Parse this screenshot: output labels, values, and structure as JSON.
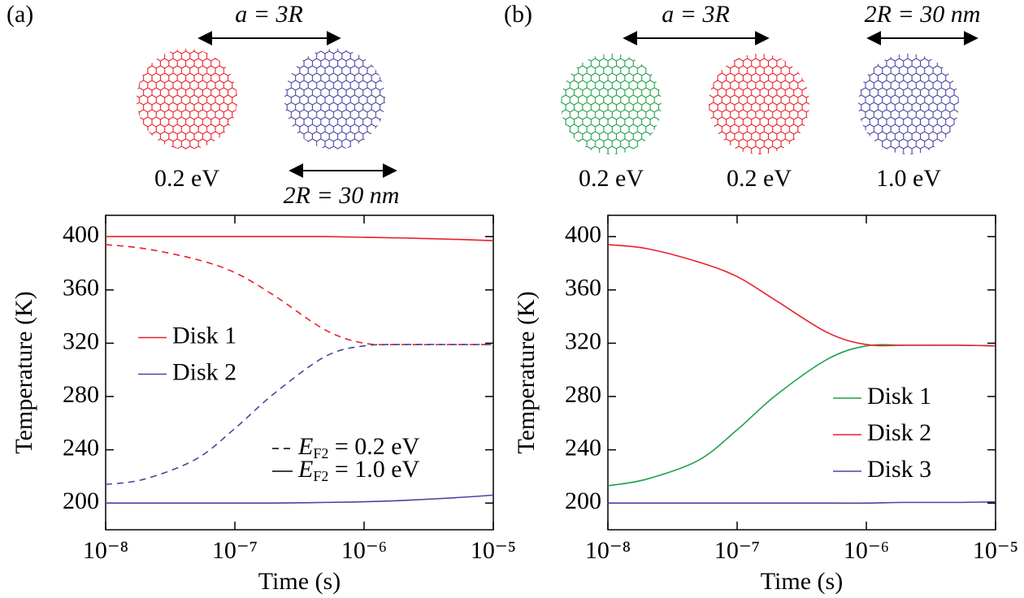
{
  "chart_data": [
    {
      "type": "line",
      "panel_label": "(a)",
      "x": [
        1e-08,
        2e-08,
        5e-08,
        1e-07,
        2e-07,
        5e-07,
        1e-06,
        2e-06,
        5e-06,
        1e-05
      ],
      "xscale": "log",
      "xlim": [
        1e-08,
        1e-05
      ],
      "xticks": [
        {
          "value": 1e-08,
          "label": "10⁻⁸"
        },
        {
          "value": 1e-07,
          "label": "10⁻⁷"
        },
        {
          "value": 1e-06,
          "label": "10⁻⁶"
        },
        {
          "value": 1e-05,
          "label": "10⁻⁵"
        }
      ],
      "ylim": [
        180,
        416
      ],
      "yticks": [
        200,
        240,
        280,
        320,
        360,
        400
      ],
      "xlabel": "Time (s)",
      "ylabel": "Temperature (K)",
      "legend": "center left",
      "series": [
        {
          "name": "Disk 1",
          "color": "#e8202a",
          "lines": [
            {
              "style": "solid",
              "values": [
                400,
                400,
                400,
                400,
                400,
                400,
                399.5,
                399,
                398,
                397
              ]
            },
            {
              "style": "dashed",
              "values": [
                394,
                391,
                383,
                373,
                356,
                330,
                320,
                319,
                319,
                319
              ]
            }
          ]
        },
        {
          "name": "Disk 2",
          "color": "#4a45a0",
          "lines": [
            {
              "style": "dashed",
              "values": [
                214,
                218,
                233,
                256,
                282,
                310,
                318,
                319,
                319,
                319
              ]
            },
            {
              "style": "solid",
              "values": [
                200,
                200,
                200,
                200,
                200,
                200.5,
                201,
                202,
                204,
                206
              ]
            }
          ]
        }
      ],
      "line_styles": {
        "legend": "lower right",
        "entries": [
          {
            "style": "dashed",
            "symbol": "E",
            "subscript": "F2",
            "text": " = 0.2 eV"
          },
          {
            "style": "solid",
            "symbol": "E",
            "subscript": "F2",
            "text": " = 1.0 eV"
          }
        ]
      },
      "disks": [
        {
          "label": "0.2 eV",
          "color": "#e8202a"
        },
        {
          "color": "#4a45a0"
        }
      ],
      "annotations": [
        {
          "text": "a = 3R"
        },
        {
          "text": "2R = 30 nm"
        }
      ]
    },
    {
      "type": "line",
      "panel_label": "(b)",
      "x": [
        1e-08,
        2e-08,
        5e-08,
        1e-07,
        2e-07,
        5e-07,
        1e-06,
        2e-06,
        5e-06,
        1e-05
      ],
      "xscale": "log",
      "xlim": [
        1e-08,
        1e-05
      ],
      "xticks": [
        {
          "value": 1e-08,
          "label": "10⁻⁸"
        },
        {
          "value": 1e-07,
          "label": "10⁻⁷"
        },
        {
          "value": 1e-06,
          "label": "10⁻⁶"
        },
        {
          "value": 1e-05,
          "label": "10⁻⁵"
        }
      ],
      "ylim": [
        180,
        416
      ],
      "yticks": [
        200,
        240,
        280,
        320,
        360,
        400
      ],
      "xlabel": "Time (s)",
      "ylabel": "Temperature (K)",
      "legend": "lower right",
      "series": [
        {
          "name": "Disk 1",
          "color": "#1fa04a",
          "lines": [
            {
              "style": "solid",
              "values": [
                213,
                218,
                232,
                255,
                281,
                308,
                318,
                318.5,
                318.5,
                318
              ]
            }
          ]
        },
        {
          "name": "Disk 2",
          "color": "#e8202a",
          "lines": [
            {
              "style": "solid",
              "values": [
                394,
                391,
                381,
                370,
                352,
                328,
                319,
                318.5,
                318.5,
                318
              ]
            }
          ]
        },
        {
          "name": "Disk 3",
          "color": "#4a45a0",
          "lines": [
            {
              "style": "solid",
              "values": [
                200,
                200,
                200,
                200,
                200,
                200,
                200,
                200.5,
                200.5,
                201
              ]
            }
          ]
        }
      ],
      "disks": [
        {
          "label": "0.2 eV",
          "color": "#1fa04a"
        },
        {
          "label": "0.2 eV",
          "color": "#e8202a"
        },
        {
          "label": "1.0 eV",
          "color": "#4a45a0"
        }
      ],
      "annotations": [
        {
          "text": "a = 3R"
        },
        {
          "text": "2R = 30 nm"
        }
      ]
    }
  ]
}
